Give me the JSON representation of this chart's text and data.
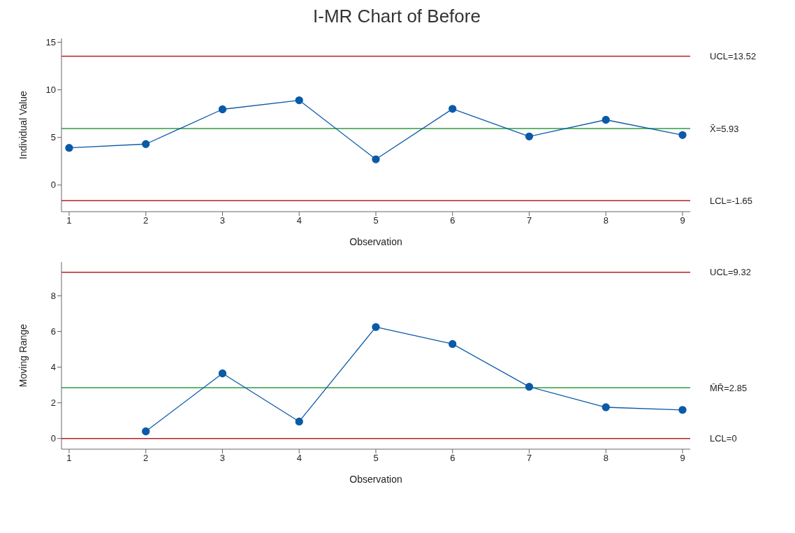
{
  "chart_data": [
    {
      "type": "line",
      "title": "I-MR Chart of Before",
      "xlabel": "Observation",
      "ylabel": "Individual Value",
      "x": [
        1,
        2,
        3,
        4,
        5,
        6,
        7,
        8,
        9
      ],
      "series": [
        {
          "color": "#0b5aa8",
          "values": [
            3.9,
            4.3,
            7.95,
            8.9,
            2.7,
            8.0,
            5.1,
            6.85,
            5.25
          ]
        }
      ],
      "xlim": [
        0.9,
        9.1
      ],
      "xticks": [
        1,
        2,
        3,
        4,
        5,
        6,
        7,
        8,
        9
      ],
      "ylim": [
        -2.8,
        15.4
      ],
      "yticks": [
        0,
        5,
        10,
        15
      ],
      "marker": "circle",
      "line_style": "solid",
      "ref_lines": [
        {
          "axis": "y",
          "value": 13.52,
          "label": "UCL=13.52",
          "color": "#b22222"
        },
        {
          "axis": "y",
          "value": 5.93,
          "label": "X̄=5.93",
          "color": "#2e9b3e"
        },
        {
          "axis": "y",
          "value": -1.65,
          "label": "LCL=-1.65",
          "color": "#b22222"
        }
      ]
    },
    {
      "type": "line",
      "xlabel": "Observation",
      "ylabel": "Moving Range",
      "series": [
        {
          "color": "#0b5aa8",
          "x": [
            2,
            3,
            4,
            5,
            6,
            7,
            8,
            9
          ],
          "values": [
            0.4,
            3.65,
            0.95,
            6.25,
            5.3,
            2.9,
            1.75,
            1.6
          ]
        }
      ],
      "xlim": [
        0.9,
        9.1
      ],
      "xticks": [
        1,
        2,
        3,
        4,
        5,
        6,
        7,
        8,
        9
      ],
      "ylim": [
        -0.6,
        9.9
      ],
      "yticks": [
        0,
        2,
        4,
        6,
        8
      ],
      "marker": "circle",
      "line_style": "solid",
      "ref_lines": [
        {
          "axis": "y",
          "value": 9.32,
          "label": "UCL=9.32",
          "color": "#b22222"
        },
        {
          "axis": "y",
          "value": 2.85,
          "label": "M̄R̄=2.85",
          "color": "#2e9b3e"
        },
        {
          "axis": "y",
          "value": 0,
          "label": "LCL=0",
          "color": "#b22222"
        }
      ]
    }
  ]
}
